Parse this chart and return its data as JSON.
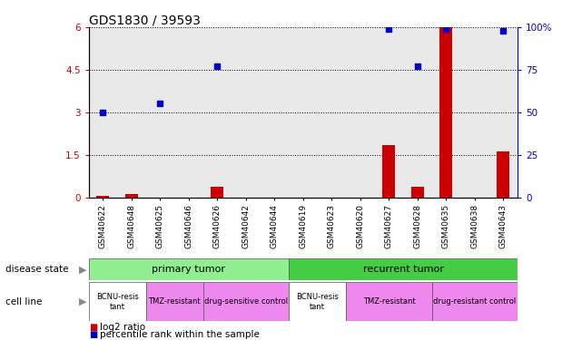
{
  "title": "GDS1830 / 39593",
  "samples": [
    "GSM40622",
    "GSM40648",
    "GSM40625",
    "GSM40646",
    "GSM40626",
    "GSM40642",
    "GSM40644",
    "GSM40619",
    "GSM40623",
    "GSM40620",
    "GSM40627",
    "GSM40628",
    "GSM40635",
    "GSM40638",
    "GSM40643"
  ],
  "log2_ratio": [
    0.05,
    0.12,
    0.0,
    0.0,
    0.38,
    0.0,
    0.0,
    0.0,
    0.0,
    0.0,
    1.85,
    0.38,
    6.0,
    0.0,
    1.62
  ],
  "percentile_rank": [
    50.0,
    null,
    55.0,
    null,
    77.0,
    null,
    null,
    null,
    null,
    null,
    99.0,
    77.0,
    99.0,
    null,
    98.0
  ],
  "ylim_left": [
    0,
    6
  ],
  "ylim_right": [
    0,
    100
  ],
  "yticks_left": [
    0,
    1.5,
    3.0,
    4.5,
    6.0
  ],
  "yticks_right": [
    0,
    25,
    50,
    75,
    100
  ],
  "ytick_labels_left": [
    "0",
    "1.5",
    "3",
    "4.5",
    "6"
  ],
  "ytick_labels_right": [
    "0",
    "25",
    "50",
    "75",
    "100%"
  ],
  "bar_color": "#CC0000",
  "dot_color": "#0000CC",
  "dot_size": 5,
  "log2_label": "log2 ratio",
  "percentile_label": "percentile rank within the sample",
  "left_axis_color": "#CC0000",
  "right_axis_color": "#0000CC",
  "grid_color": "#000000",
  "bg_color": "#ffffff",
  "sample_col_color": "#C8C8C8",
  "primary_tumor_color": "#90EE90",
  "recurrent_tumor_color": "#44CC44",
  "bcnu_color": "#ffffff",
  "tmz_color": "#EE88EE",
  "drug_control_color": "#EE88EE"
}
